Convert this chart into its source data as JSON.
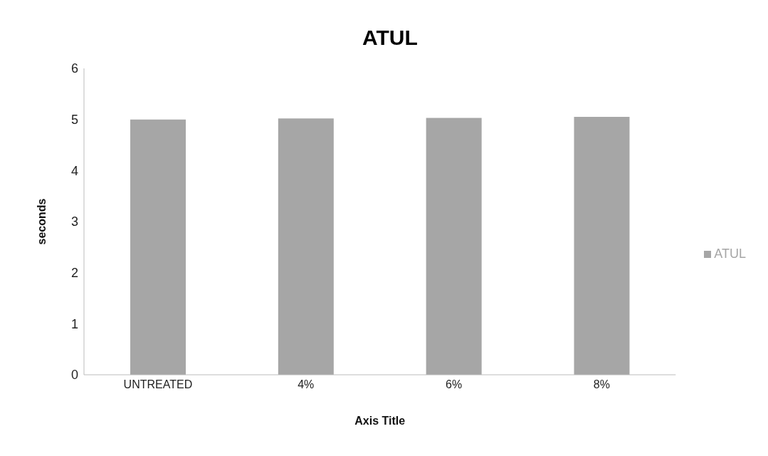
{
  "chart_data": {
    "type": "bar",
    "title": "ATUL",
    "xlabel": "Axis Title",
    "ylabel": "seconds",
    "categories": [
      "UNTREATED",
      "4%",
      "6%",
      "8%"
    ],
    "series": [
      {
        "name": "ATUL",
        "color": "#a6a6a6",
        "values": [
          5.0,
          5.02,
          5.03,
          5.05
        ]
      }
    ],
    "ylim": [
      0,
      6
    ],
    "yticks": [
      0,
      1,
      2,
      3,
      4,
      5,
      6
    ],
    "grid": false,
    "legend": "right"
  }
}
